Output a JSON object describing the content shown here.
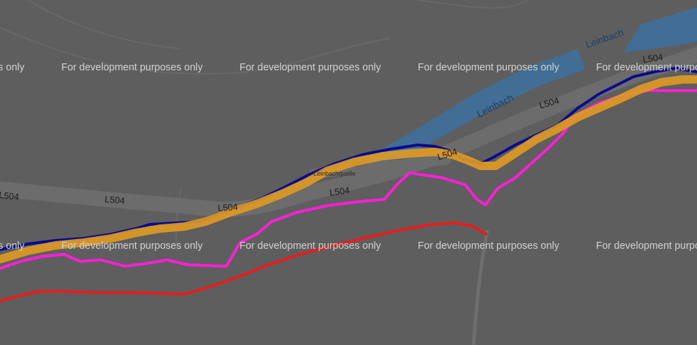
{
  "map": {
    "watermark": "For development purposes only",
    "rivers": [
      {
        "name": "Leinbach"
      },
      {
        "name": "Leinbach"
      }
    ],
    "roads": [
      {
        "name": "L504"
      },
      {
        "name": "L504"
      },
      {
        "name": "L504"
      },
      {
        "name": "L504"
      },
      {
        "name": "L504"
      },
      {
        "name": "L504"
      },
      {
        "name": "L504"
      }
    ],
    "place_label": "Leinbachquelle",
    "colors": {
      "background": "#5e5e5e",
      "road": "#6e6e6e",
      "water": "#3f6f9a",
      "route_navy": "#0a0a8c",
      "route_orange": "#e09a24",
      "route_magenta": "#ff1fd8",
      "route_red": "#e61e1e"
    },
    "routes": [
      {
        "color": "navy"
      },
      {
        "color": "orange"
      },
      {
        "color": "magenta"
      },
      {
        "color": "red"
      }
    ]
  }
}
